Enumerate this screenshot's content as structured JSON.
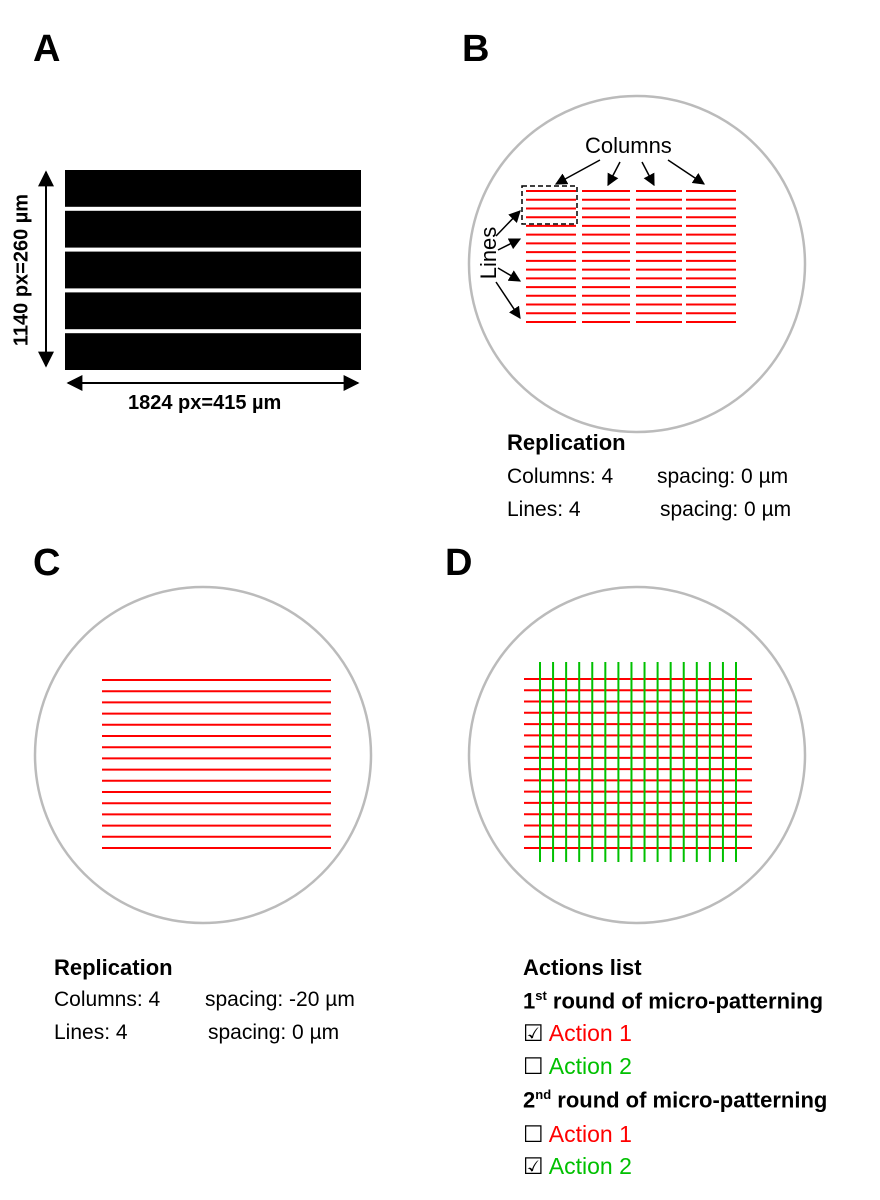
{
  "panels": {
    "a": {
      "letter": "A",
      "height_label": "1140 px=260 µm",
      "width_label": "1824 px=415 µm",
      "stripe_count": 5
    },
    "b": {
      "letter": "B",
      "columns_label": "Columns",
      "lines_label": "Lines",
      "columns": 4,
      "lines_per_block": 4,
      "line_color": "#ff0000",
      "replication": {
        "title": "Replication",
        "columns_text": "Columns: 4",
        "columns_spacing": "spacing: 0 µm",
        "lines_text": "Lines: 4",
        "lines_spacing": "spacing: 0 µm"
      }
    },
    "c": {
      "letter": "C",
      "line_color": "#ff0000",
      "line_count": 16,
      "replication": {
        "title": "Replication",
        "columns_text": "Columns: 4",
        "columns_spacing": "spacing: -20 µm",
        "lines_text": "Lines: 4",
        "lines_spacing": "spacing: 0 µm"
      }
    },
    "d": {
      "letter": "D",
      "red_color": "#ff0000",
      "green_color": "#00c000",
      "red_line_count": 16,
      "green_line_count": 16,
      "actions": {
        "title": "Actions list",
        "round1_num": "1",
        "round1_sup": "st",
        "round1_text": " round of micro-patterning",
        "round1_items": [
          {
            "box": "☑",
            "label": "Action 1"
          },
          {
            "box": "☐",
            "label": "Action 2"
          }
        ],
        "round2_num": "2",
        "round2_sup": "nd",
        "round2_text": " round of micro-patterning",
        "round2_items": [
          {
            "box": "☐",
            "label": "Action 1"
          },
          {
            "box": "☑",
            "label": "Action 2"
          }
        ]
      }
    }
  }
}
